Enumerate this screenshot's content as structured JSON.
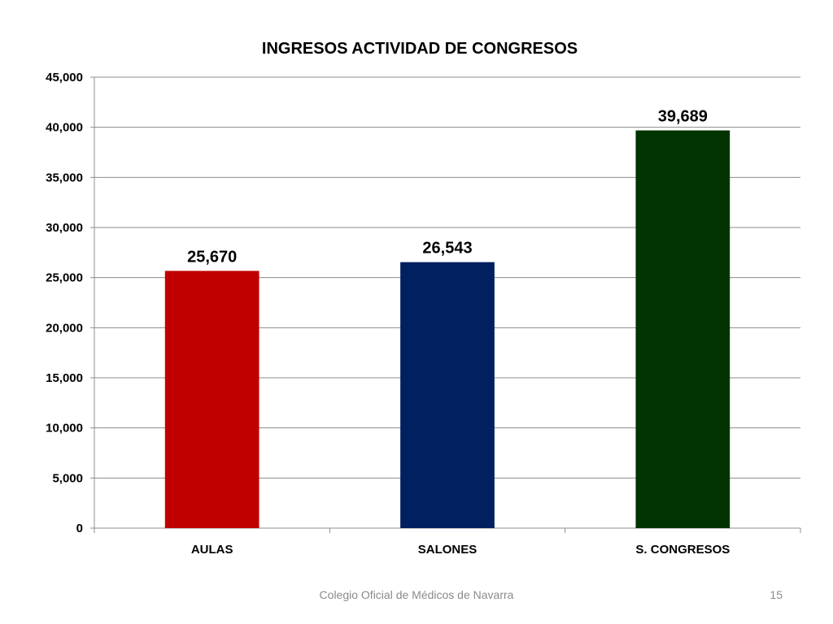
{
  "chart_data": {
    "type": "bar",
    "title": "INGRESOS ACTIVIDAD DE CONGRESOS",
    "xlabel": "",
    "ylabel": "",
    "categories": [
      "AULAS",
      "SALONES",
      "S. CONGRESOS"
    ],
    "values": [
      25670,
      26543,
      39689
    ],
    "data_labels": [
      "25,670",
      "26,543",
      "39,689"
    ],
    "bar_colors": [
      "#C00000",
      "#002060",
      "#003300"
    ],
    "ylim": [
      0,
      45000
    ],
    "ytick_values": [
      0,
      5000,
      10000,
      15000,
      20000,
      25000,
      30000,
      35000,
      40000,
      45000
    ],
    "ytick_labels": [
      "0",
      "5,000",
      "10,000",
      "15,000",
      "20,000",
      "25,000",
      "30,000",
      "35,000",
      "40,000",
      "45,000"
    ],
    "grid": true,
    "legend": "none"
  },
  "footer": {
    "organization": "Colegio Oficial de Médicos de Navarra",
    "page_number": "15"
  }
}
